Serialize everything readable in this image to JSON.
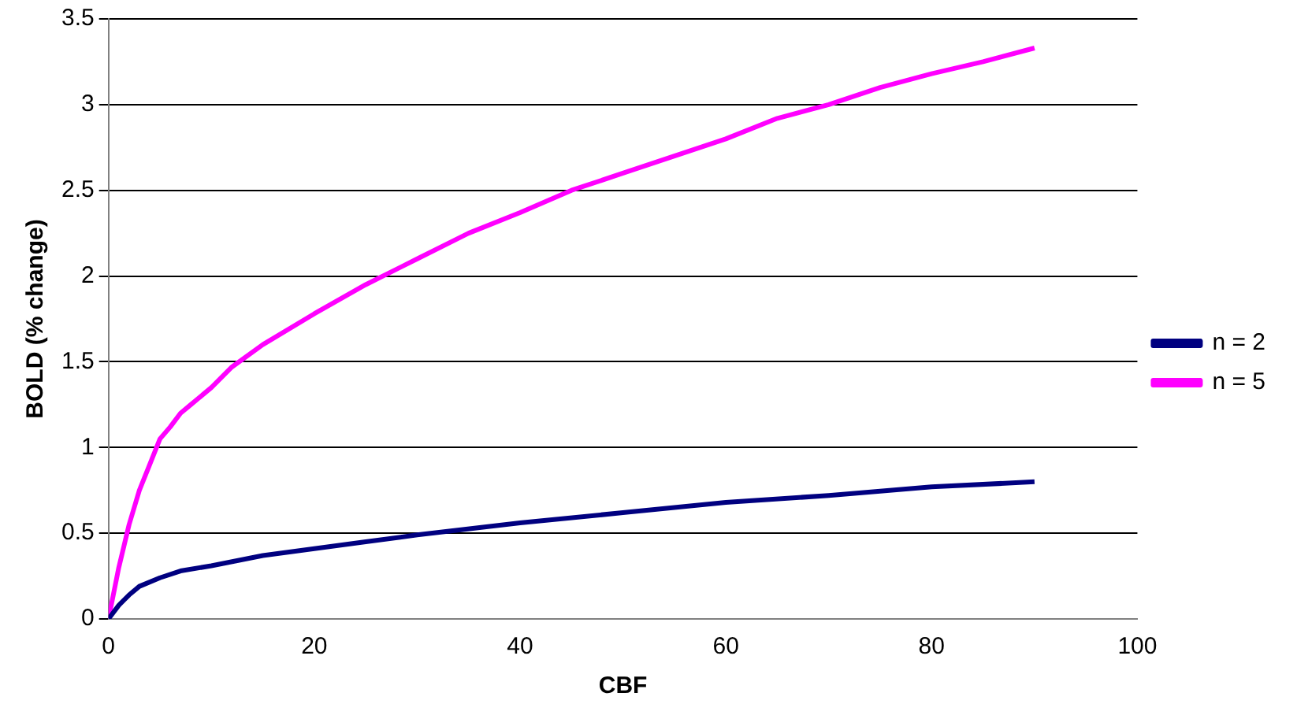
{
  "chart_data": {
    "type": "line",
    "xlabel": "CBF",
    "ylabel": "BOLD (% change)",
    "xlim": [
      0,
      100
    ],
    "xticks": [
      0,
      20,
      40,
      60,
      80,
      100
    ],
    "ylim": [
      0,
      3.5
    ],
    "yticks": [
      0,
      0.5,
      1,
      1.5,
      2,
      2.5,
      3,
      3.5
    ],
    "grid": "y",
    "legend": "right",
    "marker": "none",
    "line_style": "solid",
    "series": [
      {
        "name": "n = 2",
        "color": "#000080",
        "x": [
          0,
          1,
          2,
          3,
          5,
          7,
          10,
          15,
          20,
          25,
          30,
          40,
          50,
          60,
          70,
          80,
          90
        ],
        "values": [
          0,
          0.08,
          0.14,
          0.19,
          0.24,
          0.28,
          0.31,
          0.37,
          0.41,
          0.45,
          0.49,
          0.56,
          0.62,
          0.68,
          0.72,
          0.77,
          0.8
        ]
      },
      {
        "name": "n = 5",
        "color": "#ff00ff",
        "x": [
          0,
          1,
          2,
          3,
          4,
          5,
          6,
          7,
          8,
          10,
          12,
          15,
          20,
          25,
          30,
          35,
          40,
          45,
          50,
          55,
          60,
          65,
          70,
          75,
          80,
          85,
          90
        ],
        "values": [
          0,
          0.3,
          0.55,
          0.75,
          0.9,
          1.05,
          1.12,
          1.2,
          1.25,
          1.35,
          1.47,
          1.6,
          1.78,
          1.95,
          2.1,
          2.25,
          2.37,
          2.5,
          2.6,
          2.7,
          2.8,
          2.92,
          3.0,
          3.1,
          3.18,
          3.25,
          3.33
        ]
      }
    ]
  }
}
